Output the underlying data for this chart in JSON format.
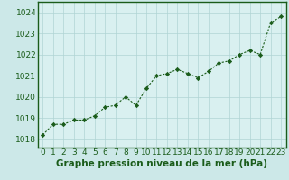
{
  "x": [
    0,
    1,
    2,
    3,
    4,
    5,
    6,
    7,
    8,
    9,
    10,
    11,
    12,
    13,
    14,
    15,
    16,
    17,
    18,
    19,
    20,
    21,
    22,
    23
  ],
  "y": [
    1018.2,
    1018.7,
    1018.7,
    1018.9,
    1018.9,
    1019.1,
    1019.5,
    1019.6,
    1020.0,
    1019.6,
    1020.4,
    1021.0,
    1021.1,
    1021.3,
    1021.1,
    1020.9,
    1021.2,
    1021.6,
    1021.7,
    1022.0,
    1022.2,
    1022.0,
    1023.5,
    1023.8
  ],
  "line_color": "#1a5c1a",
  "marker": "D",
  "marker_size": 2.2,
  "bg_color": "#cce8e8",
  "plot_bg_color": "#d9f0f0",
  "grid_color": "#b0d4d4",
  "xlabel": "Graphe pression niveau de la mer (hPa)",
  "xlabel_color": "#1a5c1a",
  "xlabel_fontsize": 7.5,
  "yticks": [
    1018,
    1019,
    1020,
    1021,
    1022,
    1023,
    1024
  ],
  "ylim": [
    1017.6,
    1024.5
  ],
  "xlim": [
    -0.5,
    23.5
  ],
  "xticks": [
    0,
    1,
    2,
    3,
    4,
    5,
    6,
    7,
    8,
    9,
    10,
    11,
    12,
    13,
    14,
    15,
    16,
    17,
    18,
    19,
    20,
    21,
    22,
    23
  ],
  "tick_fontsize": 6.5,
  "tick_color": "#1a5c1a",
  "border_color": "#1a5c1a",
  "linewidth": 0.8
}
